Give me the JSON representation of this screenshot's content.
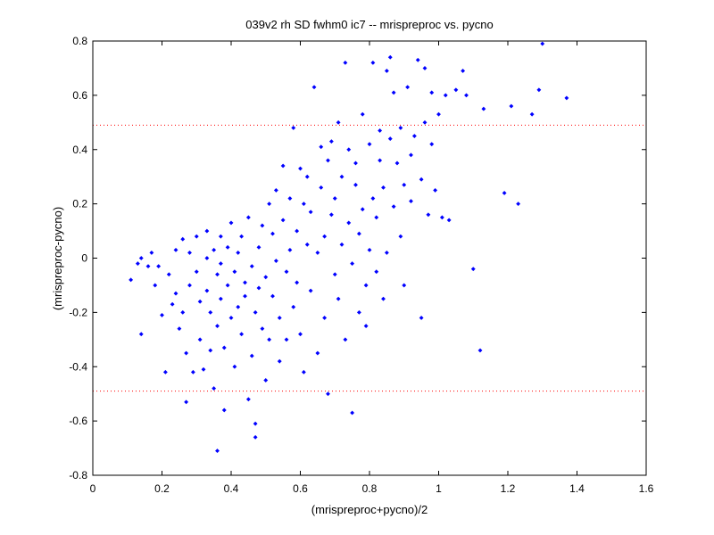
{
  "chart_data": {
    "type": "scatter",
    "title": "039v2 rh SD fwhm0 ic7 -- mrispreproc vs. pycno",
    "xlabel": "(mrispreproc+pycno)/2",
    "ylabel": "(mrispreproc-pycno)",
    "xlim": [
      0,
      1.6
    ],
    "ylim": [
      -0.8,
      0.8
    ],
    "xticks": [
      "0",
      "0.2",
      "0.4",
      "0.6",
      "0.8",
      "1",
      "1.2",
      "1.4",
      "1.6"
    ],
    "yticks": [
      "-0.8",
      "-0.6",
      "-0.4",
      "-0.2",
      "0",
      "0.2",
      "0.4",
      "0.6",
      "0.8"
    ],
    "grid": false,
    "marker_color": "#0000ff",
    "reference_line_color": "#ff0000",
    "reference_lines_y": [
      0.49,
      -0.49
    ],
    "series": [
      {
        "points": [
          [
            0.11,
            -0.08
          ],
          [
            0.13,
            -0.02
          ],
          [
            0.14,
            0.0
          ],
          [
            0.14,
            -0.28
          ],
          [
            0.16,
            -0.03
          ],
          [
            0.17,
            0.02
          ],
          [
            0.18,
            -0.1
          ],
          [
            0.19,
            -0.03
          ],
          [
            0.2,
            -0.21
          ],
          [
            0.21,
            -0.42
          ],
          [
            0.22,
            -0.06
          ],
          [
            0.23,
            -0.17
          ],
          [
            0.24,
            0.03
          ],
          [
            0.24,
            -0.13
          ],
          [
            0.25,
            -0.26
          ],
          [
            0.26,
            0.07
          ],
          [
            0.26,
            -0.2
          ],
          [
            0.27,
            -0.35
          ],
          [
            0.27,
            -0.53
          ],
          [
            0.28,
            0.02
          ],
          [
            0.28,
            -0.1
          ],
          [
            0.29,
            -0.42
          ],
          [
            0.3,
            0.08
          ],
          [
            0.3,
            -0.05
          ],
          [
            0.31,
            -0.16
          ],
          [
            0.31,
            -0.3
          ],
          [
            0.32,
            -0.41
          ],
          [
            0.33,
            0.1
          ],
          [
            0.33,
            0.0
          ],
          [
            0.33,
            -0.12
          ],
          [
            0.34,
            -0.2
          ],
          [
            0.34,
            -0.34
          ],
          [
            0.35,
            0.03
          ],
          [
            0.35,
            -0.48
          ],
          [
            0.36,
            -0.06
          ],
          [
            0.36,
            -0.25
          ],
          [
            0.36,
            -0.71
          ],
          [
            0.37,
            0.08
          ],
          [
            0.37,
            -0.02
          ],
          [
            0.37,
            -0.15
          ],
          [
            0.38,
            -0.33
          ],
          [
            0.38,
            -0.56
          ],
          [
            0.39,
            0.04
          ],
          [
            0.39,
            -0.1
          ],
          [
            0.4,
            -0.22
          ],
          [
            0.4,
            0.13
          ],
          [
            0.41,
            -0.05
          ],
          [
            0.41,
            -0.4
          ],
          [
            0.42,
            0.02
          ],
          [
            0.42,
            -0.18
          ],
          [
            0.43,
            -0.28
          ],
          [
            0.43,
            0.08
          ],
          [
            0.44,
            -0.09
          ],
          [
            0.44,
            -0.14
          ],
          [
            0.45,
            -0.52
          ],
          [
            0.45,
            0.15
          ],
          [
            0.46,
            -0.03
          ],
          [
            0.46,
            -0.36
          ],
          [
            0.47,
            -0.2
          ],
          [
            0.47,
            -0.61
          ],
          [
            0.47,
            -0.66
          ],
          [
            0.48,
            0.04
          ],
          [
            0.48,
            -0.11
          ],
          [
            0.49,
            -0.26
          ],
          [
            0.49,
            0.12
          ],
          [
            0.5,
            -0.07
          ],
          [
            0.5,
            -0.45
          ],
          [
            0.51,
            0.2
          ],
          [
            0.51,
            -0.3
          ],
          [
            0.52,
            0.09
          ],
          [
            0.52,
            -0.14
          ],
          [
            0.53,
            0.25
          ],
          [
            0.53,
            -0.01
          ],
          [
            0.54,
            -0.22
          ],
          [
            0.54,
            -0.38
          ],
          [
            0.55,
            0.34
          ],
          [
            0.55,
            0.14
          ],
          [
            0.56,
            -0.05
          ],
          [
            0.56,
            -0.3
          ],
          [
            0.57,
            0.22
          ],
          [
            0.57,
            0.03
          ],
          [
            0.58,
            -0.18
          ],
          [
            0.58,
            0.48
          ],
          [
            0.59,
            0.1
          ],
          [
            0.59,
            -0.09
          ],
          [
            0.6,
            0.33
          ],
          [
            0.6,
            -0.28
          ],
          [
            0.61,
            0.2
          ],
          [
            0.61,
            -0.42
          ],
          [
            0.62,
            0.05
          ],
          [
            0.62,
            0.3
          ],
          [
            0.63,
            -0.12
          ],
          [
            0.63,
            0.17
          ],
          [
            0.64,
            0.63
          ],
          [
            0.65,
            0.02
          ],
          [
            0.65,
            -0.35
          ],
          [
            0.66,
            0.26
          ],
          [
            0.66,
            0.41
          ],
          [
            0.67,
            0.08
          ],
          [
            0.67,
            -0.22
          ],
          [
            0.68,
            0.36
          ],
          [
            0.68,
            -0.5
          ],
          [
            0.69,
            0.16
          ],
          [
            0.69,
            0.43
          ],
          [
            0.7,
            -0.06
          ],
          [
            0.7,
            0.22
          ],
          [
            0.71,
            0.5
          ],
          [
            0.71,
            -0.15
          ],
          [
            0.72,
            0.3
          ],
          [
            0.72,
            0.05
          ],
          [
            0.73,
            0.72
          ],
          [
            0.73,
            -0.3
          ],
          [
            0.74,
            0.4
          ],
          [
            0.74,
            0.13
          ],
          [
            0.75,
            -0.02
          ],
          [
            0.75,
            -0.57
          ],
          [
            0.76,
            0.27
          ],
          [
            0.76,
            0.35
          ],
          [
            0.77,
            0.09
          ],
          [
            0.77,
            -0.2
          ],
          [
            0.78,
            0.53
          ],
          [
            0.78,
            0.18
          ],
          [
            0.79,
            -0.1
          ],
          [
            0.79,
            -0.25
          ],
          [
            0.8,
            0.42
          ],
          [
            0.8,
            0.03
          ],
          [
            0.81,
            0.22
          ],
          [
            0.81,
            0.72
          ],
          [
            0.82,
            0.15
          ],
          [
            0.82,
            -0.05
          ],
          [
            0.83,
            0.36
          ],
          [
            0.83,
            0.47
          ],
          [
            0.84,
            -0.15
          ],
          [
            0.84,
            0.26
          ],
          [
            0.85,
            0.69
          ],
          [
            0.85,
            0.02
          ],
          [
            0.86,
            0.74
          ],
          [
            0.86,
            0.44
          ],
          [
            0.87,
            0.19
          ],
          [
            0.87,
            0.61
          ],
          [
            0.88,
            0.35
          ],
          [
            0.89,
            0.08
          ],
          [
            0.89,
            0.48
          ],
          [
            0.9,
            0.27
          ],
          [
            0.9,
            -0.1
          ],
          [
            0.91,
            0.63
          ],
          [
            0.92,
            0.21
          ],
          [
            0.92,
            0.38
          ],
          [
            0.93,
            0.45
          ],
          [
            0.94,
            0.73
          ],
          [
            0.95,
            0.29
          ],
          [
            0.95,
            -0.22
          ],
          [
            0.96,
            0.5
          ],
          [
            0.96,
            0.7
          ],
          [
            0.97,
            0.16
          ],
          [
            0.98,
            0.42
          ],
          [
            0.98,
            0.61
          ],
          [
            0.99,
            0.25
          ],
          [
            1.0,
            0.53
          ],
          [
            1.01,
            0.15
          ],
          [
            1.02,
            0.6
          ],
          [
            1.03,
            0.14
          ],
          [
            1.05,
            0.62
          ],
          [
            1.07,
            0.69
          ],
          [
            1.08,
            0.6
          ],
          [
            1.1,
            -0.04
          ],
          [
            1.12,
            -0.34
          ],
          [
            1.13,
            0.55
          ],
          [
            1.19,
            0.24
          ],
          [
            1.21,
            0.56
          ],
          [
            1.23,
            0.2
          ],
          [
            1.27,
            0.53
          ],
          [
            1.29,
            0.62
          ],
          [
            1.3,
            0.79
          ],
          [
            1.37,
            0.59
          ]
        ]
      }
    ]
  }
}
